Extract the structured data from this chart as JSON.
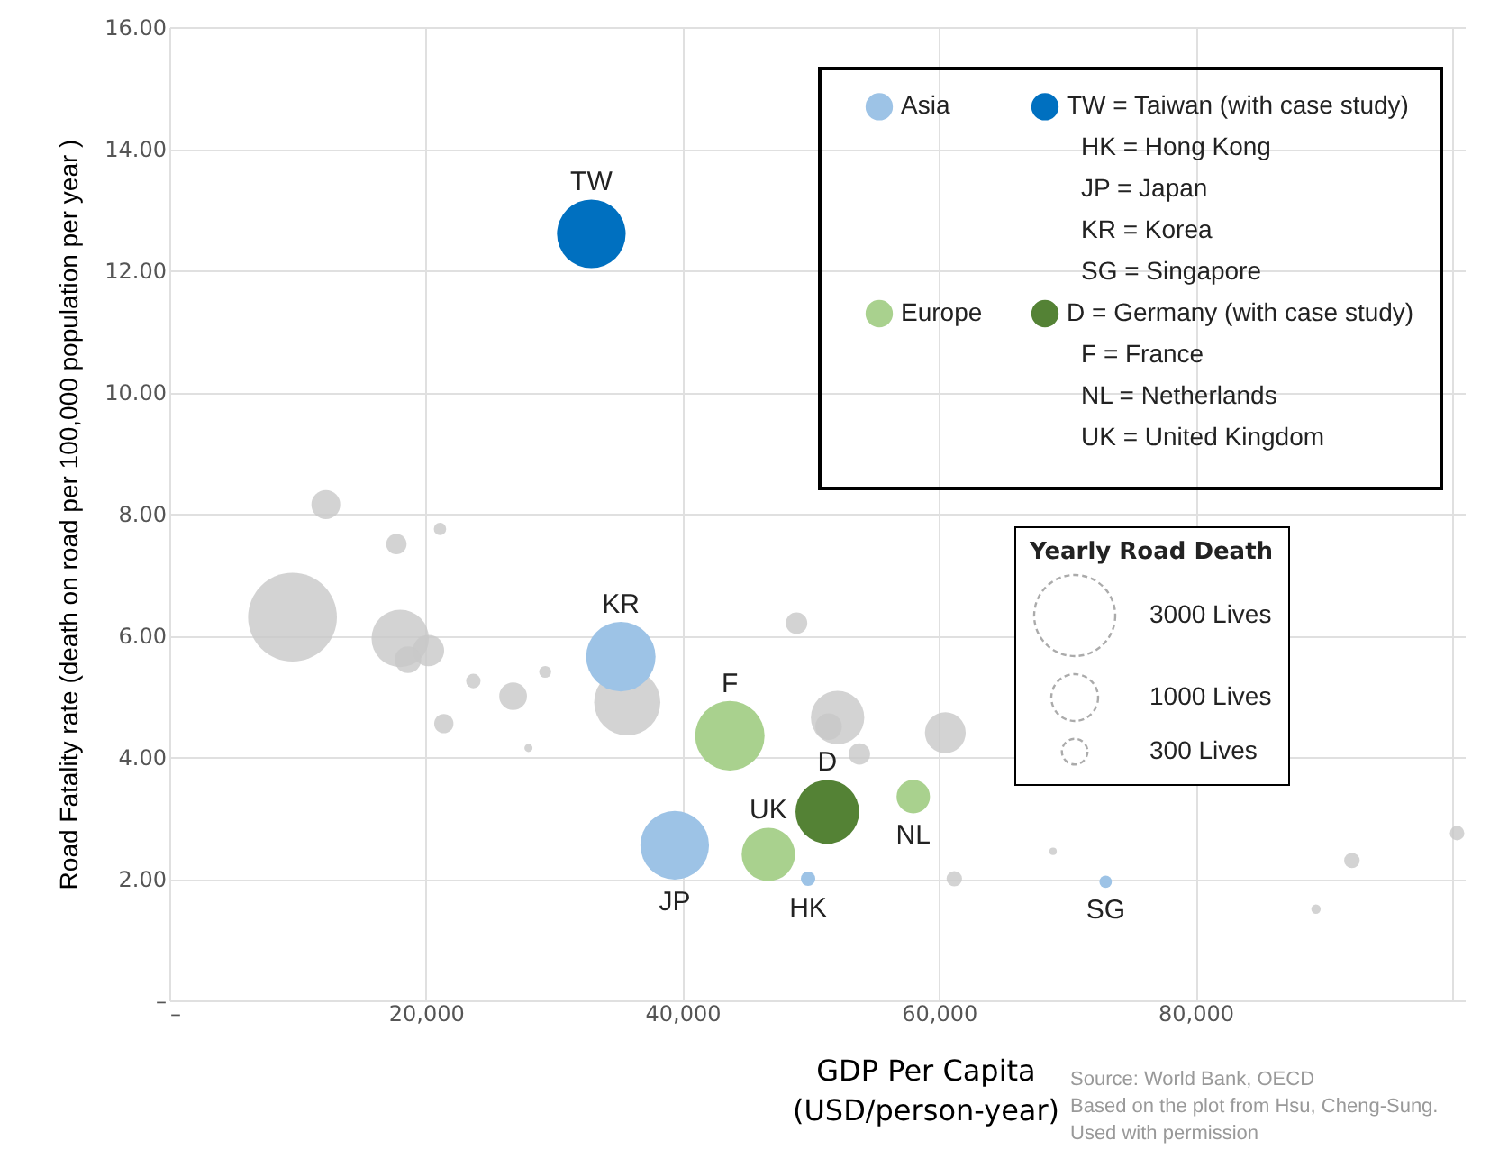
{
  "chart_data": {
    "type": "bubble",
    "xlabel": "GDP Per Capita\n(USD/person-year)",
    "ylabel": "Road Fatality rate (death on road per 100,000 population per year )",
    "xlim": [
      0,
      101000
    ],
    "xticks": [
      {
        "value": 0,
        "label": "–"
      },
      {
        "value": 20000,
        "label": "20,000"
      },
      {
        "value": 40000,
        "label": "40,000"
      },
      {
        "value": 60000,
        "label": "60,000"
      },
      {
        "value": 80000,
        "label": "80,000"
      },
      {
        "value": 100000,
        "label": null
      }
    ],
    "ylim": [
      0,
      16
    ],
    "yticks": [
      {
        "value": 0,
        "label": "–"
      },
      {
        "value": 2,
        "label": "2.00"
      },
      {
        "value": 4,
        "label": "4.00"
      },
      {
        "value": 6,
        "label": "6.00"
      },
      {
        "value": 8,
        "label": "8.00"
      },
      {
        "value": 10,
        "label": "10.00"
      },
      {
        "value": 12,
        "label": "12.00"
      },
      {
        "value": 14,
        "label": "14.00"
      },
      {
        "value": 16,
        "label": "16.00"
      }
    ],
    "grid": true,
    "legend": "top right",
    "legend_title": "Yearly Road Death",
    "size_legend": [
      {
        "value": 3000,
        "label": "3000 Lives"
      },
      {
        "value": 1000,
        "label": "1000 Lives"
      },
      {
        "value": 300,
        "label": "300 Lives"
      }
    ],
    "series": [
      {
        "color": "#c8c8c8",
        "x": [
          9600,
          12200,
          17700,
          21100,
          18000,
          20200,
          18600,
          23700,
          26800,
          29300,
          21400,
          28000,
          48900,
          52100,
          51400,
          53800,
          60500,
          61200,
          68900,
          92200,
          89400,
          100400,
          35700
        ],
        "values": [
          6.3,
          8.15,
          7.5,
          7.75,
          5.95,
          5.75,
          5.6,
          5.25,
          5.0,
          5.4,
          4.55,
          4.15,
          6.2,
          4.65,
          4.5,
          4.05,
          4.4,
          2.0,
          2.45,
          2.3,
          1.5,
          2.75,
          4.9
        ],
        "sizes": [
          3600,
          380,
          190,
          70,
          1500,
          450,
          320,
          95,
          350,
          65,
          170,
          30,
          210,
          1300,
          320,
          210,
          760,
          110,
          25,
          110,
          40,
          95,
          2000
        ]
      },
      {
        "name": "Asia",
        "color": "#9dc3e6",
        "x": [
          35200,
          39400,
          49800,
          73000
        ],
        "values": [
          5.65,
          2.55,
          2.0,
          1.95
        ],
        "sizes": [
          2200,
          2150,
          95,
          70
        ]
      },
      {
        "name": "TW = Taiwan (with case study)",
        "color": "#0070c0",
        "x": [
          32900
        ],
        "values": [
          12.6
        ],
        "sizes": [
          2150
        ]
      },
      {
        "name": "Europe",
        "color": "#a9d18e",
        "x": [
          43700,
          46700,
          58000
        ],
        "values": [
          4.35,
          2.4,
          3.35
        ],
        "sizes": [
          2200,
          1300,
          510
        ]
      },
      {
        "name": "D = Germany (with case study)",
        "color": "#548235",
        "x": [
          51300
        ],
        "values": [
          3.1
        ],
        "sizes": [
          1850
        ]
      }
    ],
    "annotations": [
      {
        "text": "TW",
        "x": 32900,
        "y": 12.6
      },
      {
        "text": "KR",
        "x": 35200,
        "y": 5.65
      },
      {
        "text": "F",
        "x": 43700,
        "y": 4.35
      },
      {
        "text": "D",
        "x": 51300,
        "y": 3.1
      },
      {
        "text": "UK",
        "x": 46700,
        "y": 2.4
      },
      {
        "text": "JP",
        "x": 39400,
        "y": 2.55
      },
      {
        "text": "HK",
        "x": 49800,
        "y": 2.0
      },
      {
        "text": "NL",
        "x": 58000,
        "y": 3.35
      },
      {
        "text": "SG",
        "x": 73000,
        "y": 1.95
      },
      "HK = Hong Kong",
      "JP = Japan",
      "KR = Korea",
      "SG = Singapore",
      "F = France",
      "NL = Netherlands",
      "UK = United Kingdom",
      "Source: World Bank, OECD\nBased on the plot from Hsu, Cheng-Sung.\nUsed with permission"
    ]
  }
}
